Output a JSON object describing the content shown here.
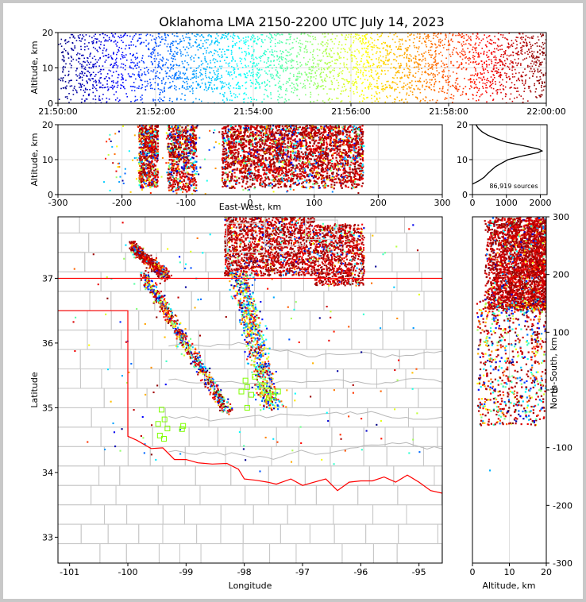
{
  "chart_data": [
    {
      "type": "scatter",
      "id": "time_height",
      "title": "Oklahoma LMA 2150-2200 UTC July 14, 2023",
      "ylabel": "Altitude, km",
      "ylim": [
        0,
        20
      ],
      "xlim": [
        "21:50:00",
        "22:00:00"
      ],
      "x_ticks": [
        "21:50:00",
        "21:52:00",
        "21:54:00",
        "21:56:00",
        "21:58:00",
        "22:00:00"
      ],
      "y_ticks": [
        0,
        10,
        20
      ],
      "color_by": "time",
      "colormap": "jet",
      "grid": true
    },
    {
      "type": "scatter",
      "id": "east_west_height",
      "xlabel": "East-West, km",
      "ylabel": "Altitude, km",
      "xlim": [
        -300,
        300
      ],
      "ylim": [
        0,
        20
      ],
      "x_ticks": [
        -300,
        -200,
        -100,
        0,
        100,
        200,
        300
      ],
      "y_ticks": [
        0,
        10,
        20
      ],
      "clusters_km": [
        {
          "x_range": [
            -175,
            -145
          ],
          "z_range": [
            2,
            20
          ]
        },
        {
          "x_range": [
            -130,
            -85
          ],
          "z_range": [
            1,
            20
          ]
        },
        {
          "x_range": [
            -45,
            175
          ],
          "z_range": [
            2,
            20
          ]
        }
      ]
    },
    {
      "type": "line",
      "id": "altitude_histogram",
      "xlim": [
        0,
        2200
      ],
      "ylim": [
        0,
        20
      ],
      "x_ticks": [
        0,
        1000,
        2000
      ],
      "y_ticks": [
        0,
        10,
        20
      ],
      "annotation": "86,919 sources",
      "series": [
        {
          "altitude_km": [
            3.0,
            4.0,
            5.0,
            6.0,
            7.0,
            8.0,
            9.0,
            10.0,
            11.0,
            12.0,
            12.5,
            13.0,
            14.0,
            15.0,
            16.0,
            17.0,
            18.0,
            19.0,
            20.0
          ],
          "count": [
            0,
            200,
            350,
            450,
            560,
            680,
            860,
            1050,
            1450,
            1920,
            2050,
            1950,
            1500,
            1000,
            700,
            450,
            280,
            170,
            100
          ]
        }
      ]
    },
    {
      "type": "scatter",
      "id": "plan_view_map",
      "xlabel": "Longitude",
      "ylabel": "Latitude",
      "xlim": [
        -101.2,
        -94.6
      ],
      "ylim": [
        32.6,
        37.95
      ],
      "x_ticks": [
        -101,
        -100,
        -99,
        -98,
        -97,
        -96,
        -95
      ],
      "y_ticks": [
        33,
        34,
        35,
        36,
        37
      ],
      "state_border_color": "#ff0000",
      "county_border_color": "#c8c8c8",
      "station_marker_color": "#7fff00",
      "stations_lonlat": [
        [
          -99.42,
          34.97
        ],
        [
          -99.37,
          34.82
        ],
        [
          -99.32,
          34.68
        ],
        [
          -99.48,
          34.75
        ],
        [
          -99.45,
          34.57
        ],
        [
          -99.38,
          34.52
        ],
        [
          -99.05,
          34.72
        ],
        [
          -99.07,
          34.67
        ],
        [
          -98.05,
          35.25
        ],
        [
          -97.95,
          35.32
        ],
        [
          -97.88,
          35.2
        ],
        [
          -97.82,
          35.48
        ],
        [
          -97.7,
          35.35
        ],
        [
          -97.6,
          35.27
        ],
        [
          -97.58,
          35.15
        ],
        [
          -97.5,
          35.18
        ],
        [
          -97.42,
          35.25
        ],
        [
          -97.95,
          35.0
        ],
        [
          -97.98,
          35.42
        ]
      ]
    },
    {
      "type": "scatter",
      "id": "north_south_height",
      "xlabel": "Altitude, km",
      "ylabel": "North-South, km",
      "xlim": [
        0,
        20
      ],
      "ylim": [
        -300,
        300
      ],
      "x_ticks": [
        0,
        10,
        20
      ],
      "y_ticks": [
        -300,
        -200,
        -100,
        0,
        100,
        200,
        300
      ]
    }
  ]
}
